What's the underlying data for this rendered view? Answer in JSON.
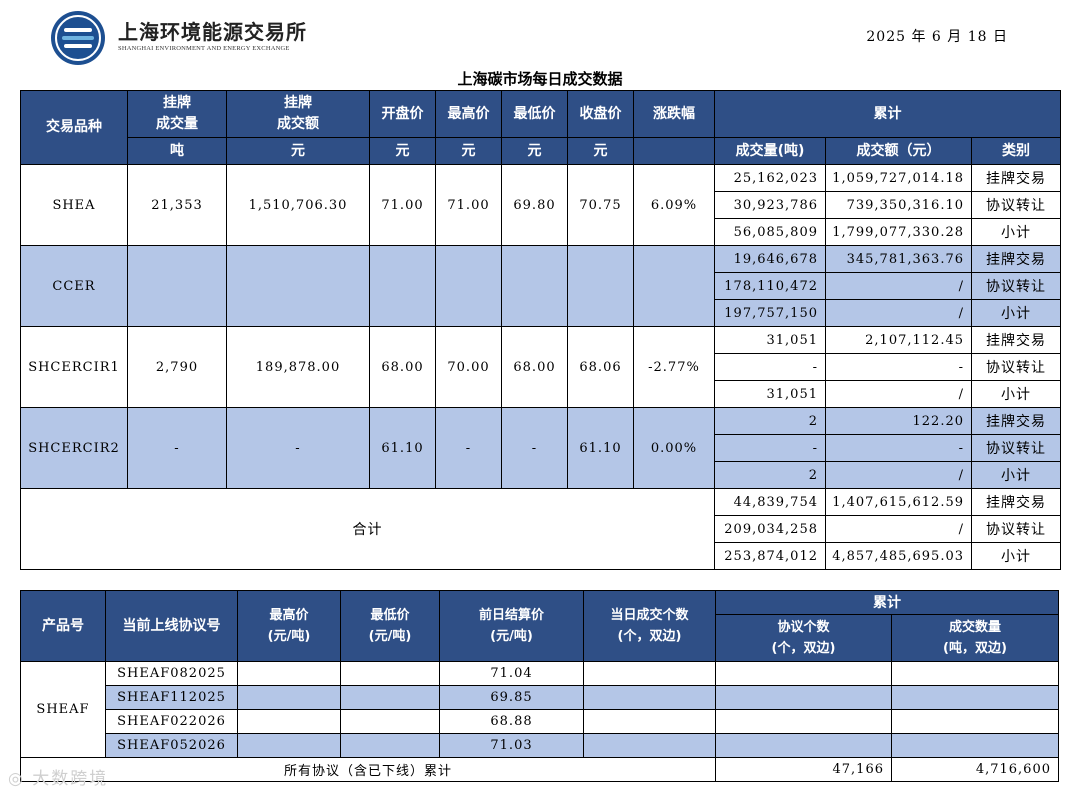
{
  "header": {
    "org_cn": "上海环境能源交易所",
    "org_en": "SHANGHAI ENVIRONMENT AND ENERGY EXCHANGE",
    "date": "2025 年 6 月 18 日",
    "title": "上海碳市场每日成交数据"
  },
  "table1": {
    "headers": {
      "variety": "交易品种",
      "listed_volume": "挂牌\n成交量",
      "listed_amount": "挂牌\n成交额",
      "open": "开盘价",
      "high": "最高价",
      "low": "最低价",
      "close": "收盘价",
      "change": "涨跌幅",
      "cumulative": "累计",
      "unit_ton": "吨",
      "unit_yuan": "元",
      "cum_volume": "成交量(吨)",
      "cum_amount": "成交额（元）",
      "cum_type": "类别"
    },
    "products": [
      {
        "name": "SHEA",
        "listed_volume": "21,353",
        "listed_amount": "1,510,706.30",
        "open": "71.00",
        "high": "71.00",
        "low": "69.80",
        "close": "70.75",
        "change": "6.09%",
        "rows": [
          {
            "volume": "25,162,023",
            "amount": "1,059,727,014.18",
            "type": "挂牌交易"
          },
          {
            "volume": "30,923,786",
            "amount": "739,350,316.10",
            "type": "协议转让"
          },
          {
            "volume": "56,085,809",
            "amount": "1,799,077,330.28",
            "type": "小计"
          }
        ]
      },
      {
        "name": "CCER",
        "listed_volume": "",
        "listed_amount": "",
        "open": "",
        "high": "",
        "low": "",
        "close": "",
        "change": "",
        "rows": [
          {
            "volume": "19,646,678",
            "amount": "345,781,363.76",
            "type": "挂牌交易"
          },
          {
            "volume": "178,110,472",
            "amount": "/",
            "type": "协议转让"
          },
          {
            "volume": "197,757,150",
            "amount": "/",
            "type": "小计"
          }
        ]
      },
      {
        "name": "SHCERCIR1",
        "listed_volume": "2,790",
        "listed_amount": "189,878.00",
        "open": "68.00",
        "high": "70.00",
        "low": "68.00",
        "close": "68.06",
        "change": "-2.77%",
        "rows": [
          {
            "volume": "31,051",
            "amount": "2,107,112.45",
            "type": "挂牌交易"
          },
          {
            "volume": "-",
            "amount": "-",
            "type": "协议转让"
          },
          {
            "volume": "31,051",
            "amount": "/",
            "type": "小计"
          }
        ]
      },
      {
        "name": "SHCERCIR2",
        "listed_volume": "-",
        "listed_amount": "-",
        "open": "61.10",
        "high": "-",
        "low": "-",
        "close": "61.10",
        "change": "0.00%",
        "rows": [
          {
            "volume": "2",
            "amount": "122.20",
            "type": "挂牌交易"
          },
          {
            "volume": "-",
            "amount": "-",
            "type": "协议转让"
          },
          {
            "volume": "2",
            "amount": "/",
            "type": "小计"
          }
        ]
      }
    ],
    "total": {
      "label": "合计",
      "rows": [
        {
          "volume": "44,839,754",
          "amount": "1,407,615,612.59",
          "type": "挂牌交易"
        },
        {
          "volume": "209,034,258",
          "amount": "/",
          "type": "协议转让"
        },
        {
          "volume": "253,874,012",
          "amount": "4,857,485,695.03",
          "type": "小计"
        }
      ]
    }
  },
  "table2": {
    "headers": {
      "product": "产品号",
      "contract": "当前上线协议号",
      "high": "最高价\n(元/吨)",
      "low": "最低价\n(元/吨)",
      "settle": "前日结算价\n(元/吨)",
      "count": "当日成交个数\n(个，双边)",
      "cumulative": "累计",
      "cum_count": "协议个数\n(个，双边)",
      "cum_qty": "成交数量\n(吨，双边)"
    },
    "product": "SHEAF",
    "contracts": [
      {
        "code": "SHEAF082025",
        "high": "",
        "low": "",
        "settle": "71.04",
        "count": "",
        "cum_count": "",
        "cum_qty": ""
      },
      {
        "code": "SHEAF112025",
        "high": "",
        "low": "",
        "settle": "69.85",
        "count": "",
        "cum_count": "",
        "cum_qty": ""
      },
      {
        "code": "SHEAF022026",
        "high": "",
        "low": "",
        "settle": "68.88",
        "count": "",
        "cum_count": "",
        "cum_qty": ""
      },
      {
        "code": "SHEAF052026",
        "high": "",
        "low": "",
        "settle": "71.03",
        "count": "",
        "cum_count": "",
        "cum_qty": ""
      }
    ],
    "total": {
      "label": "所有协议（含已下线）累计",
      "cum_count": "47,166",
      "cum_qty": "4,716,600"
    }
  },
  "watermark": "大数跨境"
}
